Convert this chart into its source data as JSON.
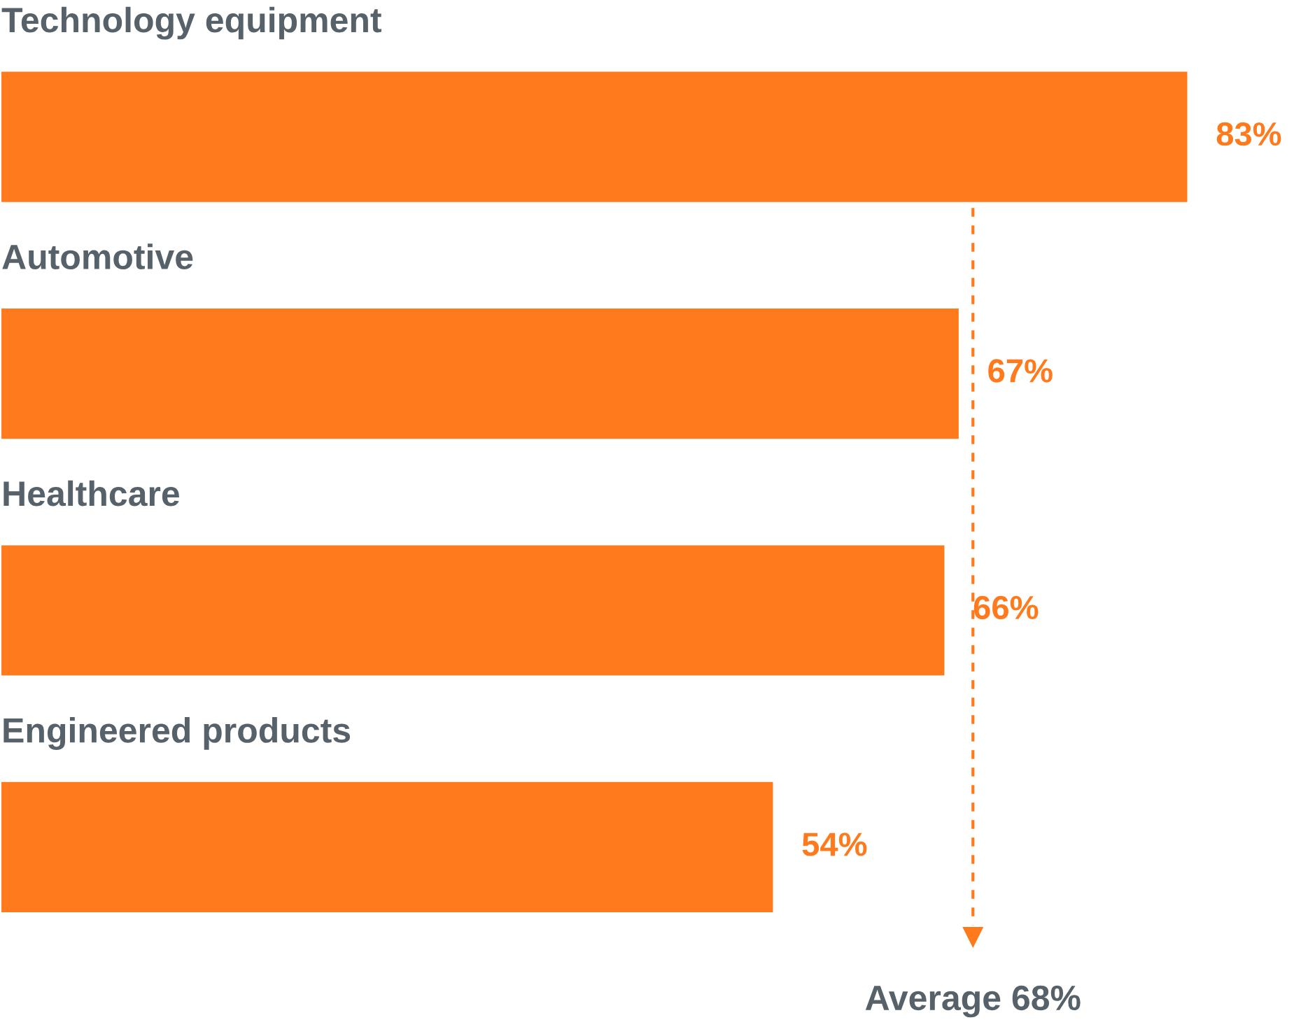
{
  "chart_data": {
    "type": "bar",
    "orientation": "horizontal",
    "categories": [
      "Technology equipment",
      "Automotive",
      "Healthcare",
      "Engineered products"
    ],
    "values": [
      83,
      67,
      66,
      54
    ],
    "value_labels": [
      "83%",
      "67%",
      "66%",
      "54%"
    ],
    "color": "#ff7a1c",
    "ref_lines": [
      {
        "axis": "x",
        "value": 68,
        "label": "Average 68%",
        "color": "#ff7a1c",
        "line_style": "dashed"
      }
    ]
  }
}
